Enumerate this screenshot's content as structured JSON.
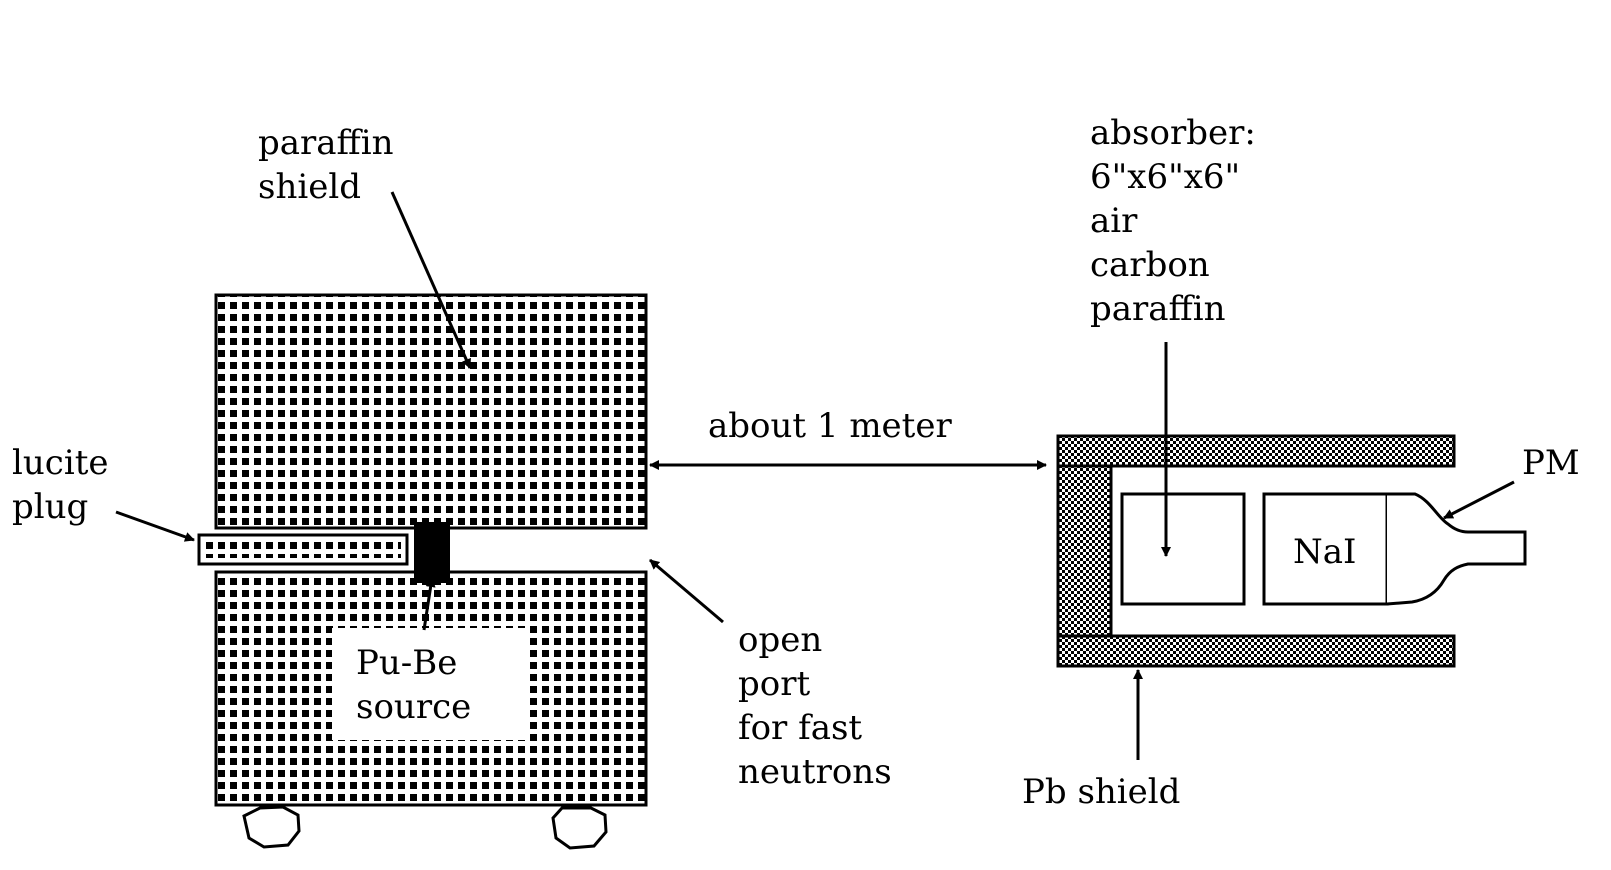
{
  "labels": {
    "paraffin_shield": [
      "paraffin",
      "shield"
    ],
    "lucite_plug": [
      "lucite",
      "plug"
    ],
    "source": [
      "Pu-Be",
      "source"
    ],
    "open_port": [
      "open",
      "port",
      "for fast",
      "neutrons"
    ],
    "distance": "about 1 meter",
    "absorber": [
      "absorber:",
      "6\"x6\"x6\"",
      "air",
      "carbon",
      "paraffin"
    ],
    "detector": "NaI",
    "pm": "PM",
    "pb_shield": "Pb shield"
  },
  "colors": {
    "line": "#000000",
    "background": "#ffffff"
  }
}
